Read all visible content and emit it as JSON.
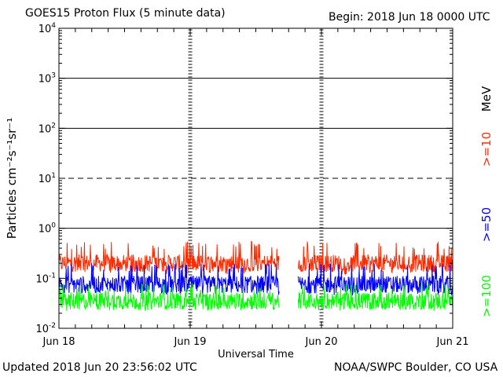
{
  "header": {
    "title": "GOES15 Proton Flux (5 minute data)",
    "begin": "Begin: 2018 Jun 18 0000 UTC"
  },
  "footer": {
    "updated": "Updated 2018 Jun 20 23:56:02 UTC",
    "credit": "NOAA/SWPC Boulder, CO USA"
  },
  "chart_data": {
    "type": "line",
    "title": "GOES15 Proton Flux (5 minute data)",
    "xlabel": "Universal Time",
    "ylabel": "Particles cm⁻²s⁻¹sr⁻¹",
    "yscale": "log",
    "ylim": [
      0.01,
      10000
    ],
    "xlim_days": [
      0,
      3
    ],
    "x_ticks": [
      {
        "day": 0,
        "label": "Jun 18"
      },
      {
        "day": 1,
        "label": "Jun 19"
      },
      {
        "day": 2,
        "label": "Jun 20"
      },
      {
        "day": 3,
        "label": "Jun 21"
      }
    ],
    "y_ticks": [
      {
        "exp": -2,
        "base": "10",
        "sup": "-2"
      },
      {
        "exp": -1,
        "base": "10",
        "sup": "-1"
      },
      {
        "exp": 0,
        "base": "10",
        "sup": "0"
      },
      {
        "exp": 1,
        "base": "10",
        "sup": "1"
      },
      {
        "exp": 2,
        "base": "10",
        "sup": "2"
      },
      {
        "exp": 3,
        "base": "10",
        "sup": "3"
      },
      {
        "exp": 4,
        "base": "10",
        "sup": "4"
      }
    ],
    "threshold_lines": [
      {
        "value": 1,
        "style": "solid"
      },
      {
        "value": 10,
        "style": "dashed"
      },
      {
        "value": 100,
        "style": "solid"
      },
      {
        "value": 1000,
        "style": "solid"
      }
    ],
    "data_gap_days": [
      1.68,
      1.82
    ],
    "legend_unit": "MeV",
    "series": [
      {
        "name": ">=10",
        "color": "#ff2a00",
        "typical": 0.2,
        "min": 0.12,
        "max": 0.55
      },
      {
        "name": ">=50",
        "color": "#0000ff",
        "typical": 0.075,
        "min": 0.045,
        "max": 0.2
      },
      {
        "name": ">=100",
        "color": "#00ff00",
        "typical": 0.035,
        "min": 0.022,
        "max": 0.08
      }
    ]
  }
}
